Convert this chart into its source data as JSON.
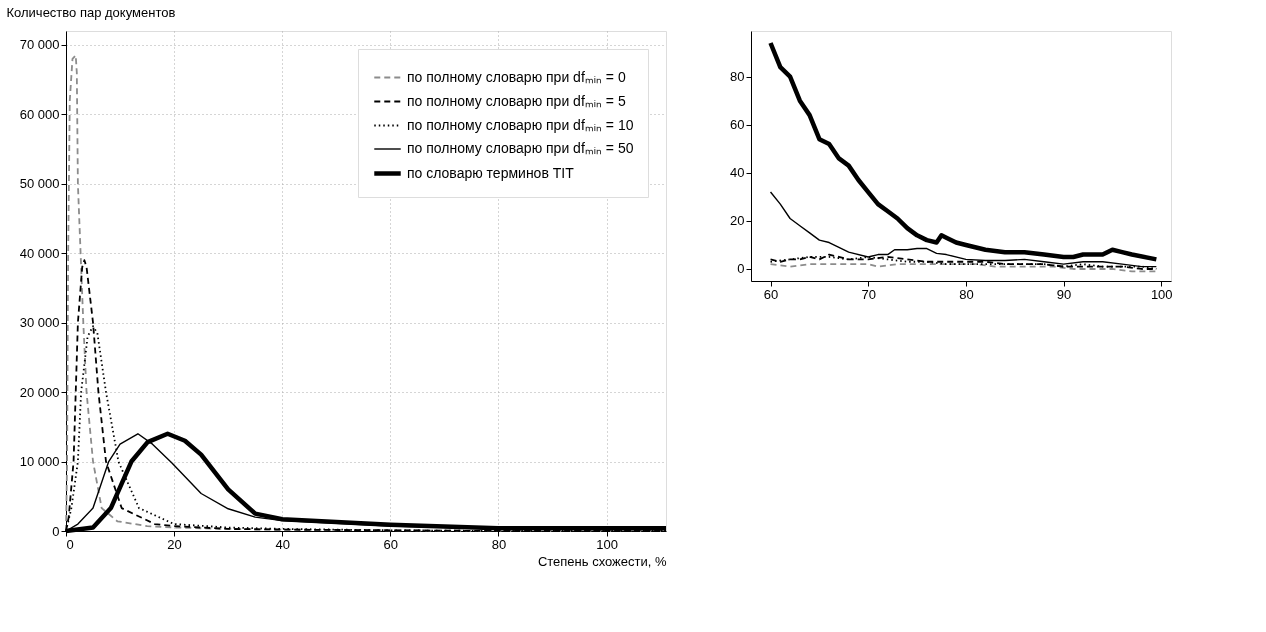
{
  "chart_data": [
    {
      "type": "line",
      "xlabel": "Степень схожести, %",
      "ylabel": "Количество пар документов",
      "xlim": [
        0,
        111
      ],
      "xticks": [
        0,
        20,
        40,
        60,
        80,
        100
      ],
      "ylim": [
        0,
        72000
      ],
      "yticks": [
        0,
        {
          "value": 10000,
          "label": "10 000"
        },
        {
          "value": 20000,
          "label": "20 000"
        },
        {
          "value": 30000,
          "label": "30 000"
        },
        {
          "value": 40000,
          "label": "40 000"
        },
        {
          "value": 50000,
          "label": "50 000"
        },
        {
          "value": 60000,
          "label": "60 000"
        },
        {
          "value": 70000,
          "label": "70 000"
        }
      ],
      "grid": true,
      "legend": "top right",
      "marker": "none",
      "series": [
        {
          "name": "по полному словарю при dfₘᵢₙ = 0",
          "color": "#8c8c8c",
          "line_style": "dashed",
          "x": [
            0,
            0.2,
            0.4,
            0.7,
            1.2,
            1.8,
            2.0,
            2.2,
            2.7,
            3.2,
            3.8,
            5.0,
            6.6,
            9.5,
            15,
            20,
            30,
            40,
            60,
            80,
            100,
            111
          ],
          "values": [
            0,
            10000,
            40000,
            62000,
            68000,
            68500,
            66000,
            50000,
            40000,
            30000,
            20000,
            10000,
            3300,
            1400,
            700,
            500,
            300,
            200,
            100,
            0,
            0,
            0
          ]
        },
        {
          "name": "по полному словарю при dfₘᵢₙ = 5",
          "color": "#000000",
          "line_style": "dashed",
          "x": [
            0,
            0.5,
            1.4,
            2.2,
            3.0,
            3.4,
            3.8,
            5.0,
            6.0,
            7.4,
            10.3,
            16.4,
            20,
            30,
            40,
            60,
            80,
            100,
            111
          ],
          "values": [
            0,
            2000,
            10000,
            30000,
            38000,
            39000,
            38000,
            30000,
            20000,
            10000,
            3300,
            1000,
            700,
            300,
            200,
            100,
            0,
            0,
            0
          ]
        },
        {
          "name": "по полному словарю при dfₘᵢₙ = 10",
          "color": "#000000",
          "line_style": "dotted",
          "x": [
            0,
            1.0,
            2.2,
            2.8,
            4.0,
            5.0,
            5.8,
            7.4,
            9.7,
            13.5,
            20,
            30,
            40,
            60,
            80,
            100,
            111
          ],
          "values": [
            0,
            3300,
            10000,
            20000,
            28000,
            29500,
            28500,
            20000,
            10000,
            3300,
            1000,
            500,
            300,
            100,
            0,
            0,
            0
          ]
        },
        {
          "name": "по полному словарю при dfₘᵢₙ = 50",
          "color": "#000000",
          "line_style": "solid",
          "x": [
            0,
            2.2,
            5,
            7.9,
            10,
            13.3,
            16,
            19.6,
            25,
            30,
            35,
            40,
            60,
            80,
            100,
            111
          ],
          "values": [
            0,
            1000,
            3300,
            10000,
            12500,
            14000,
            12500,
            9800,
            5400,
            3200,
            2000,
            1500,
            700,
            300,
            200,
            200
          ]
        },
        {
          "name": "по словарю терминов TIT",
          "color": "#000000",
          "line_style": "solid",
          "x": [
            0,
            5,
            8.3,
            12.1,
            15.1,
            18.8,
            22,
            25,
            30,
            35,
            40,
            60,
            80,
            100,
            111
          ],
          "values": [
            0,
            500,
            3300,
            10000,
            12800,
            14000,
            13000,
            11000,
            6000,
            2500,
            1700,
            900,
            400,
            400,
            400
          ]
        }
      ]
    },
    {
      "type": "line",
      "xlim": [
        58,
        101
      ],
      "xticks": [
        60,
        70,
        80,
        90,
        100
      ],
      "ylim": [
        -5,
        99
      ],
      "yticks": [
        0,
        20,
        40,
        60,
        80
      ],
      "marker": "none",
      "series": [
        {
          "color": "#8c8c8c",
          "line_style": "dashed",
          "x": [
            60,
            62,
            64,
            66,
            68,
            70,
            71,
            73,
            75,
            77,
            79,
            81,
            83,
            85,
            87,
            89,
            91,
            93,
            95,
            97,
            99.5
          ],
          "values": [
            2,
            1,
            2,
            2,
            2,
            2,
            1,
            2,
            2,
            2,
            2,
            2,
            1,
            1,
            1,
            1,
            0,
            0,
            0,
            -1,
            -1
          ]
        },
        {
          "color": "#000000",
          "line_style": "dashed",
          "x": [
            60,
            61,
            62,
            63,
            64,
            65,
            66,
            67,
            68,
            70,
            72,
            74,
            76,
            78,
            80,
            82,
            84,
            86,
            88,
            90,
            92,
            94,
            96,
            98,
            99.5
          ],
          "values": [
            4,
            3,
            4,
            4,
            5,
            4,
            6,
            5,
            4,
            4,
            5,
            4,
            3,
            3,
            3,
            3,
            2,
            2,
            2,
            1,
            1,
            1,
            1,
            0,
            0
          ]
        },
        {
          "color": "#000000",
          "line_style": "dotted",
          "x": [
            60,
            62,
            64,
            65,
            66,
            68,
            70,
            72,
            74,
            76,
            78,
            80,
            82,
            84,
            86,
            88,
            90,
            92,
            94,
            96,
            98,
            99.5
          ],
          "values": [
            3,
            4,
            5,
            5,
            5,
            4,
            5,
            4,
            3,
            3,
            2,
            2,
            2,
            2,
            2,
            2,
            1,
            2,
            1,
            1,
            1,
            0
          ]
        },
        {
          "color": "#000000",
          "line_style": "solid",
          "x": [
            60,
            61,
            62,
            63,
            64,
            65,
            66,
            67,
            68,
            70,
            71,
            72,
            72.7,
            74,
            75,
            76,
            77,
            78,
            80,
            82,
            84,
            86,
            88,
            90,
            92,
            94,
            96,
            98,
            99.5
          ],
          "values": [
            32,
            27,
            21,
            18,
            15,
            12,
            11,
            9,
            7,
            5,
            6,
            6,
            8,
            8,
            8.5,
            8.5,
            6.5,
            6,
            4,
            3.5,
            3.5,
            4,
            3,
            2,
            3,
            3,
            2,
            1,
            1
          ]
        },
        {
          "color": "#000000",
          "line_style": "solid",
          "x": [
            60,
            61,
            62,
            63,
            64,
            65,
            66,
            67,
            68,
            69,
            70,
            71,
            72,
            73,
            74,
            75,
            76,
            77,
            77.5,
            78,
            79,
            80,
            82,
            84,
            86,
            88,
            90,
            91,
            92,
            93,
            94,
            95,
            96,
            97,
            99.5
          ],
          "values": [
            94,
            84,
            80,
            70,
            64,
            54,
            52,
            46,
            43,
            37,
            32,
            27,
            24,
            21,
            17,
            14,
            12,
            11,
            14,
            13,
            11,
            10,
            8,
            7,
            7,
            6,
            5,
            5,
            6,
            6,
            6,
            8,
            7,
            6,
            4
          ]
        }
      ]
    }
  ]
}
